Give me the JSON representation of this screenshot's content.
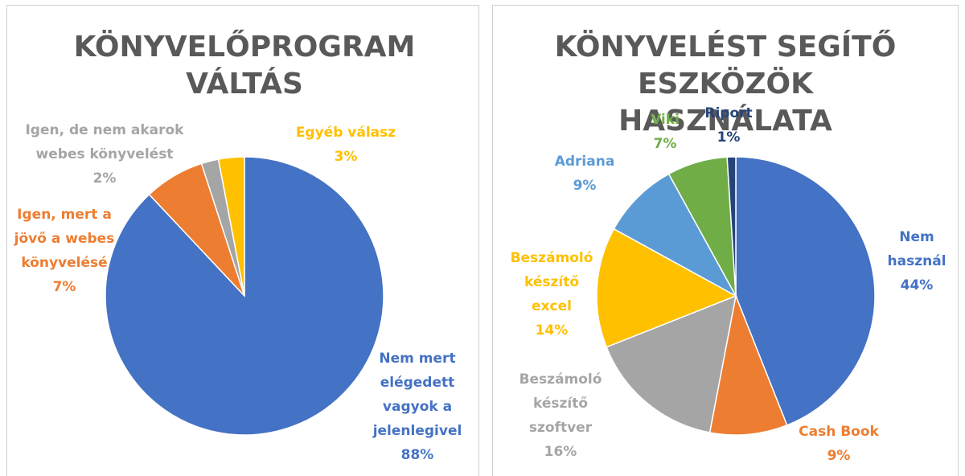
{
  "chart_data": [
    {
      "type": "pie",
      "title": "KÖNYVELŐPROGRAM VÁLTÁS",
      "categories": [
        "Nem mert elégedett vagyok a jelenlegivel",
        "Igen, mert a jövő a webes könyvelésé",
        "Igen, de nem akarok webes könyvelést",
        "Egyéb válasz"
      ],
      "values": [
        88,
        7,
        2,
        3
      ],
      "value_labels": [
        "88%",
        "7%",
        "2%",
        "3%"
      ],
      "colors": [
        "#4472c4",
        "#ed7d31",
        "#a5a5a5",
        "#ffc000"
      ]
    },
    {
      "type": "pie",
      "title": "KÖNYVELÉST SEGÍTŐ ESZKÖZÖK HASZNÁLATA",
      "categories": [
        "Nem használ",
        "Cash Book",
        "Beszámoló készítő szoftver",
        "Beszámoló készítő excel",
        "Adriana",
        "Viki",
        "Riport"
      ],
      "values": [
        44,
        9,
        16,
        14,
        9,
        7,
        1
      ],
      "value_labels": [
        "44%",
        "9%",
        "16%",
        "14%",
        "9%",
        "7%",
        "1%"
      ],
      "colors": [
        "#4472c4",
        "#ed7d31",
        "#a5a5a5",
        "#ffc000",
        "#5b9bd5",
        "#70ad47",
        "#264478"
      ]
    }
  ]
}
